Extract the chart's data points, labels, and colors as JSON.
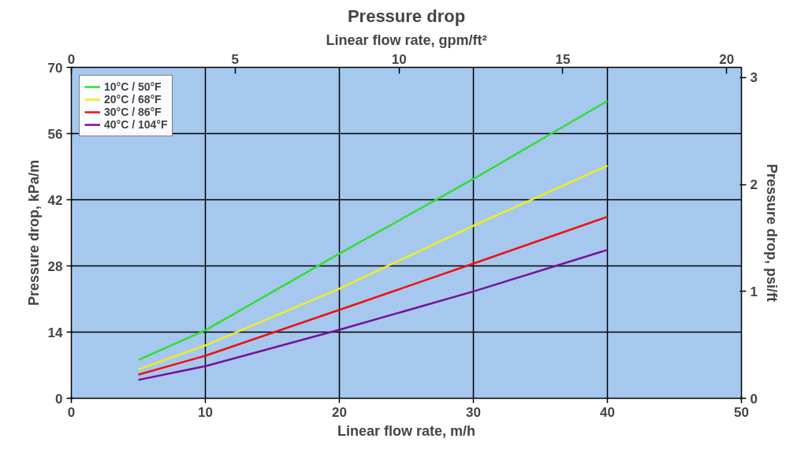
{
  "chart_data": {
    "type": "line",
    "title": "Pressure drop",
    "xlabel": "Linear flow rate, m/h",
    "x2label": "Linear flow rate, gpm/ft²",
    "ylabel": "Pressure drop, kPa/m",
    "y2label": "Pressure drop, psi/ft",
    "x": [
      5,
      10,
      20,
      30,
      40
    ],
    "series": [
      {
        "name": "10°C / 50°F",
        "color": "#33dd33",
        "values": [
          8.1,
          14.4,
          30.6,
          46.4,
          62.9
        ]
      },
      {
        "name": "20°C / 68°F",
        "color": "#eeee22",
        "values": [
          6.1,
          11.2,
          23.2,
          36.5,
          49.2
        ]
      },
      {
        "name": "30°C / 86°F",
        "color": "#ee1111",
        "values": [
          5.0,
          9.0,
          18.7,
          28.5,
          38.4
        ]
      },
      {
        "name": "40°C / 104°F",
        "color": "#771199",
        "values": [
          3.9,
          6.8,
          14.5,
          22.6,
          31.4
        ]
      }
    ],
    "xlim": [
      0,
      50
    ],
    "xticks": [
      0,
      10,
      20,
      30,
      40,
      50
    ],
    "ylim": [
      0,
      70
    ],
    "yticks": [
      0,
      14,
      28,
      42,
      56,
      70
    ],
    "x2lim": [
      0,
      20.45
    ],
    "x2ticks": [
      0,
      5,
      10,
      15,
      20
    ],
    "y2lim": [
      0,
      3.094
    ],
    "y2ticks": [
      0,
      1,
      2,
      3
    ],
    "grid": true,
    "legend": "top left",
    "line_style": "solid",
    "marker": "none"
  }
}
